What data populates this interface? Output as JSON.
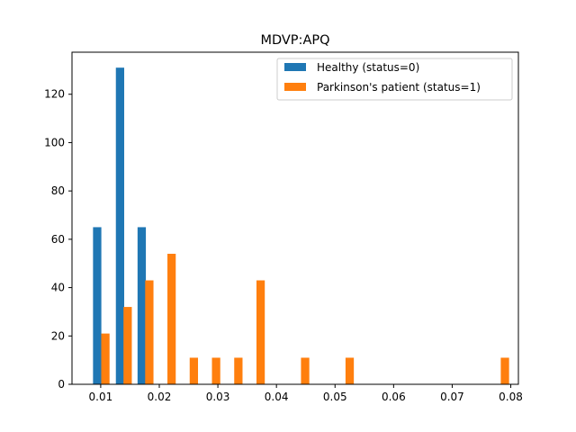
{
  "chart_data": {
    "type": "bar",
    "title": "MDVP:APQ",
    "xlabel": "",
    "ylabel": "",
    "xlim": [
      0.0051,
      0.0813
    ],
    "ylim": [
      0,
      137.4
    ],
    "x_ticks": [
      0.01,
      0.02,
      0.03,
      0.04,
      0.05,
      0.06,
      0.07,
      0.08
    ],
    "y_ticks": [
      0,
      20,
      40,
      60,
      80,
      100,
      120
    ],
    "grid": false,
    "legend_position": "top-right",
    "series": [
      {
        "name": "Healthy (status=0)",
        "color": "#1f77b4",
        "bars": [
          {
            "x": 0.0094,
            "value": 65
          },
          {
            "x": 0.0133,
            "value": 131
          },
          {
            "x": 0.017,
            "value": 65
          }
        ]
      },
      {
        "name": "Parkinson's patient (status=1)",
        "color": "#ff7f0e",
        "bars": [
          {
            "x": 0.0108,
            "value": 21
          },
          {
            "x": 0.0146,
            "value": 32
          },
          {
            "x": 0.0183,
            "value": 43
          },
          {
            "x": 0.0221,
            "value": 54
          },
          {
            "x": 0.0259,
            "value": 11
          },
          {
            "x": 0.0297,
            "value": 11
          },
          {
            "x": 0.0335,
            "value": 11
          },
          {
            "x": 0.0373,
            "value": 43
          },
          {
            "x": 0.0449,
            "value": 11
          },
          {
            "x": 0.0525,
            "value": 11
          },
          {
            "x": 0.079,
            "value": 11
          }
        ]
      }
    ],
    "bar_width": 0.00142
  }
}
